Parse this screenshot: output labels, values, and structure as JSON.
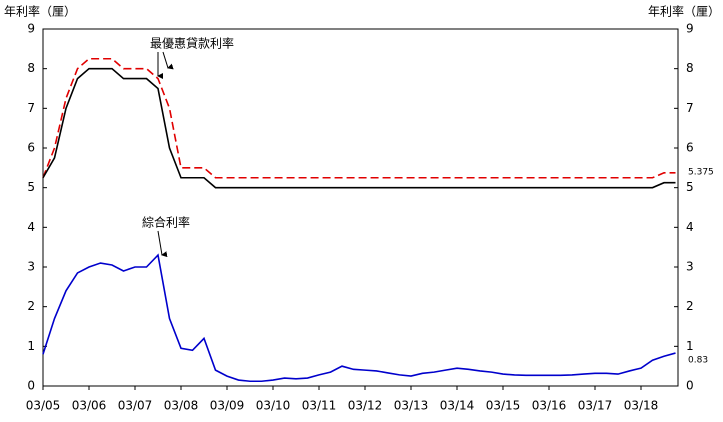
{
  "chart_data": {
    "type": "line",
    "y_label": "年利率（厘）",
    "y2_label": "年利率（厘）",
    "categories": [
      "03/05",
      null,
      null,
      null,
      "03/06",
      null,
      null,
      null,
      "03/07",
      null,
      null,
      null,
      "03/08",
      null,
      null,
      null,
      "03/09",
      null,
      null,
      null,
      "03/10",
      null,
      null,
      null,
      "03/11",
      null,
      null,
      null,
      "03/12",
      null,
      null,
      null,
      "03/13",
      null,
      null,
      null,
      "03/14",
      null,
      null,
      null,
      "03/15",
      null,
      null,
      null,
      "03/16",
      null,
      null,
      null,
      "03/17",
      null,
      null,
      null,
      "03/18",
      null,
      null,
      null
    ],
    "ylim": [
      0,
      9
    ],
    "yticks": [
      0,
      1,
      2,
      3,
      4,
      5,
      6,
      7,
      8,
      9
    ],
    "series": [
      {
        "name": "最優惠貸款利率",
        "color": "#e00000",
        "style": "dashed",
        "values": [
          5.25,
          6.0,
          7.25,
          8.0,
          8.25,
          8.25,
          8.25,
          8.0,
          8.0,
          8.0,
          7.75,
          7.0,
          5.5,
          5.5,
          5.5,
          5.25,
          5.25,
          5.25,
          5.25,
          5.25,
          5.25,
          5.25,
          5.25,
          5.25,
          5.25,
          5.25,
          5.25,
          5.25,
          5.25,
          5.25,
          5.25,
          5.25,
          5.25,
          5.25,
          5.25,
          5.25,
          5.25,
          5.25,
          5.25,
          5.25,
          5.25,
          5.25,
          5.25,
          5.25,
          5.25,
          5.25,
          5.25,
          5.25,
          5.25,
          5.25,
          5.25,
          5.25,
          5.25,
          5.25,
          5.375,
          5.375
        ]
      },
      {
        "name": "最優惠貸款利率",
        "color": "#000000",
        "style": "solid",
        "values": [
          5.25,
          5.75,
          7.0,
          7.75,
          8.0,
          8.0,
          8.0,
          7.75,
          7.75,
          7.75,
          7.5,
          6.0,
          5.25,
          5.25,
          5.25,
          5.0,
          5.0,
          5.0,
          5.0,
          5.0,
          5.0,
          5.0,
          5.0,
          5.0,
          5.0,
          5.0,
          5.0,
          5.0,
          5.0,
          5.0,
          5.0,
          5.0,
          5.0,
          5.0,
          5.0,
          5.0,
          5.0,
          5.0,
          5.0,
          5.0,
          5.0,
          5.0,
          5.0,
          5.0,
          5.0,
          5.0,
          5.0,
          5.0,
          5.0,
          5.0,
          5.0,
          5.0,
          5.0,
          5.0,
          5.125,
          5.125
        ]
      },
      {
        "name": "綜合利率",
        "color": "#0000cc",
        "style": "solid",
        "values": [
          0.8,
          1.7,
          2.4,
          2.85,
          3.0,
          3.1,
          3.05,
          2.9,
          3.0,
          3.0,
          3.3,
          1.7,
          0.95,
          0.9,
          1.2,
          0.4,
          0.25,
          0.15,
          0.12,
          0.12,
          0.15,
          0.2,
          0.18,
          0.2,
          0.28,
          0.35,
          0.5,
          0.42,
          0.4,
          0.38,
          0.33,
          0.28,
          0.25,
          0.32,
          0.35,
          0.4,
          0.45,
          0.42,
          0.38,
          0.35,
          0.3,
          0.28,
          0.27,
          0.27,
          0.27,
          0.27,
          0.28,
          0.3,
          0.32,
          0.32,
          0.3,
          0.38,
          0.45,
          0.65,
          0.75,
          0.83
        ]
      }
    ],
    "end_labels": [
      "5.375",
      "0.83"
    ]
  }
}
